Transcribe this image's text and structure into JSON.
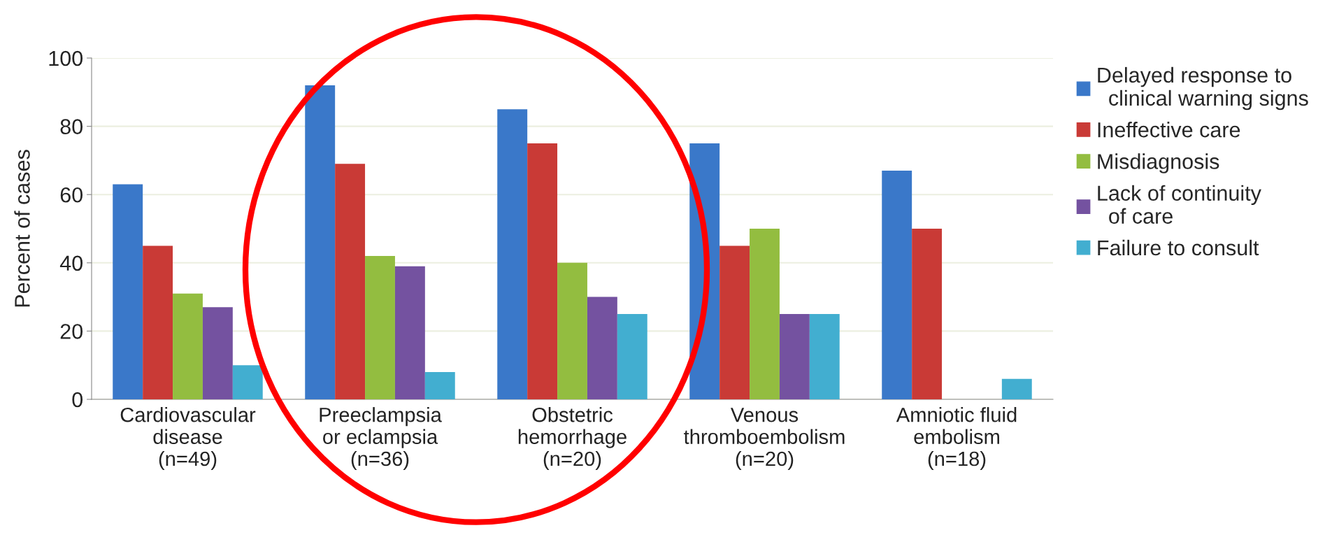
{
  "chart_data": {
    "type": "bar",
    "ylabel": "Percent of cases",
    "categories": [
      "Cardiovascular\ndisease\n(n=49)",
      "Preeclampsia\nor eclampsia\n(n=36)",
      "Obstetric\nhemorrhage\n(n=20)",
      "Venous\nthromboembolism\n(n=20)",
      "Amniotic fluid\nembolism\n(n=18)"
    ],
    "series": [
      {
        "name": "Delayed response to\n  clinical warning signs",
        "color": "#3a78c9",
        "values": [
          63,
          92,
          85,
          75,
          67
        ]
      },
      {
        "name": "Ineffective care",
        "color": "#c93a36",
        "values": [
          45,
          69,
          75,
          45,
          50
        ]
      },
      {
        "name": "Misdiagnosis",
        "color": "#93bd40",
        "values": [
          31,
          42,
          40,
          50,
          null
        ]
      },
      {
        "name": "Lack of continuity\n  of care",
        "color": "#7452a0",
        "values": [
          27,
          39,
          30,
          25,
          null
        ]
      },
      {
        "name": "Failure to consult",
        "color": "#42aed0",
        "values": [
          10,
          8,
          25,
          25,
          6
        ]
      }
    ],
    "ylim": [
      0,
      100
    ],
    "yticks": [
      0,
      20,
      40,
      60,
      80,
      100
    ],
    "grid": "y",
    "legend": "right"
  }
}
